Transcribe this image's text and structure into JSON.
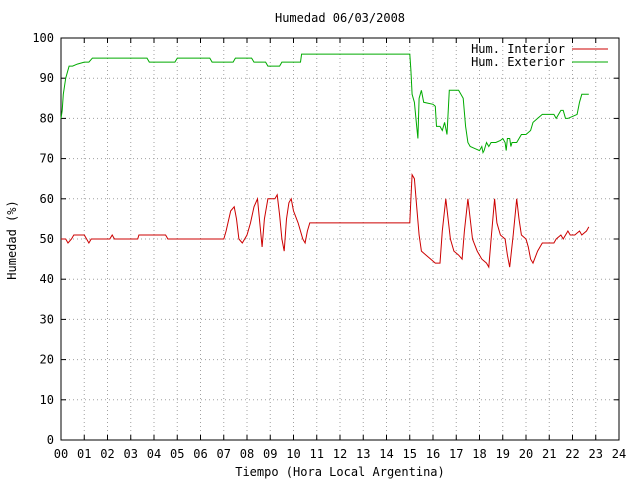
{
  "chart_data": {
    "type": "line",
    "title": "Humedad 06/03/2008",
    "xlabel": "Tiempo (Hora Local Argentina)",
    "ylabel": "Humedad (%)",
    "xlim": [
      0,
      24
    ],
    "ylim": [
      0,
      100
    ],
    "x_ticks": [
      "00",
      "01",
      "02",
      "03",
      "04",
      "05",
      "06",
      "07",
      "08",
      "09",
      "10",
      "11",
      "12",
      "13",
      "14",
      "15",
      "16",
      "17",
      "18",
      "19",
      "20",
      "21",
      "22",
      "23",
      "24"
    ],
    "y_ticks": [
      0,
      10,
      20,
      30,
      40,
      50,
      60,
      70,
      80,
      90,
      100
    ],
    "grid": true,
    "legend_position": "top-right",
    "series": [
      {
        "name": "Hum. Interior",
        "color": "#cc0000",
        "points": [
          [
            0.0,
            50
          ],
          [
            0.2,
            50
          ],
          [
            0.3,
            49
          ],
          [
            0.45,
            50
          ],
          [
            0.55,
            51
          ],
          [
            1.0,
            51
          ],
          [
            1.1,
            50
          ],
          [
            1.2,
            49
          ],
          [
            1.3,
            50
          ],
          [
            2.1,
            50
          ],
          [
            2.2,
            51
          ],
          [
            2.3,
            50
          ],
          [
            3.0,
            50
          ],
          [
            3.3,
            50
          ],
          [
            3.35,
            51
          ],
          [
            4.0,
            51
          ],
          [
            4.5,
            51
          ],
          [
            4.6,
            50
          ],
          [
            5.0,
            50
          ],
          [
            7.0,
            50
          ],
          [
            7.1,
            52
          ],
          [
            7.3,
            57
          ],
          [
            7.45,
            58
          ],
          [
            7.55,
            55
          ],
          [
            7.65,
            50
          ],
          [
            7.8,
            49
          ],
          [
            8.0,
            51
          ],
          [
            8.15,
            54
          ],
          [
            8.3,
            58
          ],
          [
            8.45,
            60
          ],
          [
            8.55,
            54
          ],
          [
            8.65,
            48
          ],
          [
            8.75,
            55
          ],
          [
            8.9,
            60
          ],
          [
            9.1,
            60
          ],
          [
            9.2,
            60
          ],
          [
            9.3,
            61
          ],
          [
            9.4,
            56
          ],
          [
            9.5,
            50
          ],
          [
            9.6,
            47
          ],
          [
            9.7,
            55
          ],
          [
            9.8,
            59
          ],
          [
            9.9,
            60
          ],
          [
            10.0,
            57
          ],
          [
            10.2,
            54
          ],
          [
            10.4,
            50
          ],
          [
            10.5,
            49
          ],
          [
            10.6,
            52
          ],
          [
            10.7,
            54
          ],
          [
            11.0,
            54
          ],
          [
            12.0,
            54
          ],
          [
            13.0,
            54
          ],
          [
            14.0,
            54
          ],
          [
            15.0,
            54
          ],
          [
            15.05,
            60
          ],
          [
            15.1,
            66
          ],
          [
            15.2,
            65
          ],
          [
            15.3,
            58
          ],
          [
            15.4,
            51
          ],
          [
            15.5,
            47
          ],
          [
            15.7,
            46
          ],
          [
            15.9,
            45
          ],
          [
            16.1,
            44
          ],
          [
            16.3,
            44
          ],
          [
            16.4,
            52
          ],
          [
            16.55,
            60
          ],
          [
            16.65,
            55
          ],
          [
            16.75,
            50
          ],
          [
            16.9,
            47
          ],
          [
            17.1,
            46
          ],
          [
            17.25,
            45
          ],
          [
            17.35,
            52
          ],
          [
            17.5,
            60
          ],
          [
            17.6,
            55
          ],
          [
            17.7,
            50
          ],
          [
            17.9,
            47
          ],
          [
            18.1,
            45
          ],
          [
            18.3,
            44
          ],
          [
            18.4,
            43
          ],
          [
            18.5,
            50
          ],
          [
            18.65,
            60
          ],
          [
            18.75,
            54
          ],
          [
            18.9,
            51
          ],
          [
            19.1,
            50
          ],
          [
            19.2,
            46
          ],
          [
            19.3,
            43
          ],
          [
            19.45,
            51
          ],
          [
            19.6,
            60
          ],
          [
            19.7,
            55
          ],
          [
            19.8,
            51
          ],
          [
            20.0,
            50
          ],
          [
            20.1,
            48
          ],
          [
            20.2,
            45
          ],
          [
            20.3,
            44
          ],
          [
            20.5,
            47
          ],
          [
            20.7,
            49
          ],
          [
            21.0,
            49
          ],
          [
            21.2,
            49
          ],
          [
            21.3,
            50
          ],
          [
            21.5,
            51
          ],
          [
            21.6,
            50
          ],
          [
            21.8,
            52
          ],
          [
            21.9,
            51
          ],
          [
            22.1,
            51
          ],
          [
            22.3,
            52
          ],
          [
            22.4,
            51
          ],
          [
            22.6,
            52
          ],
          [
            22.7,
            53
          ]
        ]
      },
      {
        "name": "Hum. Exterior",
        "color": "#00aa00",
        "points": [
          [
            0.0,
            80
          ],
          [
            0.05,
            82
          ],
          [
            0.1,
            86
          ],
          [
            0.2,
            90
          ],
          [
            0.35,
            93
          ],
          [
            0.5,
            93
          ],
          [
            0.7,
            93.5
          ],
          [
            1.0,
            94
          ],
          [
            1.2,
            94
          ],
          [
            1.35,
            95
          ],
          [
            2.0,
            95
          ],
          [
            3.0,
            95
          ],
          [
            3.7,
            95
          ],
          [
            3.8,
            94
          ],
          [
            4.5,
            94
          ],
          [
            4.9,
            94
          ],
          [
            5.0,
            95
          ],
          [
            6.0,
            95
          ],
          [
            6.4,
            95
          ],
          [
            6.5,
            94
          ],
          [
            7.0,
            94
          ],
          [
            7.4,
            94
          ],
          [
            7.5,
            95
          ],
          [
            8.0,
            95
          ],
          [
            8.2,
            95
          ],
          [
            8.3,
            94
          ],
          [
            8.8,
            94
          ],
          [
            8.9,
            93
          ],
          [
            9.4,
            93
          ],
          [
            9.5,
            94
          ],
          [
            10.3,
            94
          ],
          [
            10.35,
            96
          ],
          [
            11.0,
            96
          ],
          [
            12.0,
            96
          ],
          [
            13.0,
            96
          ],
          [
            14.0,
            96
          ],
          [
            15.0,
            96
          ],
          [
            15.05,
            92
          ],
          [
            15.1,
            86
          ],
          [
            15.2,
            84
          ],
          [
            15.3,
            78
          ],
          [
            15.35,
            75
          ],
          [
            15.4,
            85
          ],
          [
            15.5,
            87
          ],
          [
            15.6,
            84
          ],
          [
            16.0,
            83.5
          ],
          [
            16.1,
            83
          ],
          [
            16.15,
            78
          ],
          [
            16.3,
            78
          ],
          [
            16.4,
            77
          ],
          [
            16.5,
            79
          ],
          [
            16.6,
            76
          ],
          [
            16.7,
            87
          ],
          [
            17.1,
            87
          ],
          [
            17.2,
            86
          ],
          [
            17.3,
            85
          ],
          [
            17.4,
            78
          ],
          [
            17.5,
            74
          ],
          [
            17.6,
            73
          ],
          [
            17.8,
            72.5
          ],
          [
            18.0,
            72
          ],
          [
            18.1,
            73
          ],
          [
            18.15,
            71.5
          ],
          [
            18.2,
            72
          ],
          [
            18.3,
            74
          ],
          [
            18.4,
            73
          ],
          [
            18.5,
            74
          ],
          [
            18.7,
            74
          ],
          [
            18.9,
            74.5
          ],
          [
            19.0,
            75
          ],
          [
            19.1,
            74
          ],
          [
            19.15,
            72
          ],
          [
            19.2,
            75
          ],
          [
            19.3,
            75
          ],
          [
            19.35,
            73
          ],
          [
            19.4,
            74
          ],
          [
            19.6,
            74
          ],
          [
            19.8,
            76
          ],
          [
            20.0,
            76
          ],
          [
            20.2,
            77
          ],
          [
            20.3,
            79
          ],
          [
            20.5,
            80
          ],
          [
            20.7,
            81
          ],
          [
            21.0,
            81
          ],
          [
            21.2,
            81
          ],
          [
            21.3,
            80
          ],
          [
            21.5,
            82
          ],
          [
            21.6,
            82
          ],
          [
            21.7,
            80
          ],
          [
            21.8,
            80
          ],
          [
            22.0,
            80.5
          ],
          [
            22.2,
            81
          ],
          [
            22.3,
            84
          ],
          [
            22.4,
            86
          ],
          [
            22.7,
            86
          ]
        ]
      }
    ]
  }
}
